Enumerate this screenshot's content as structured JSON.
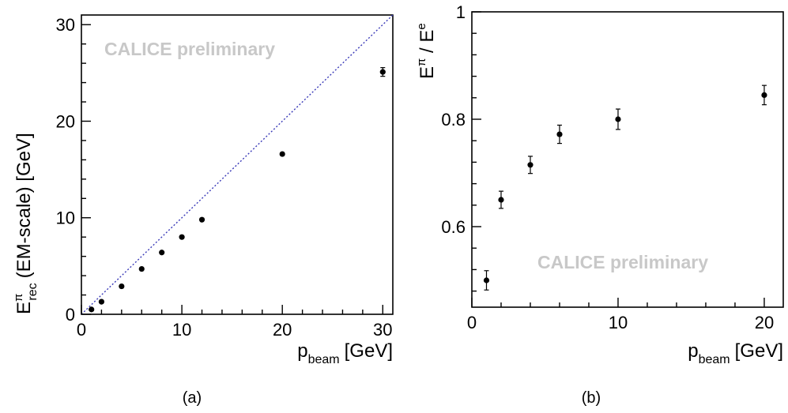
{
  "chart_data": [
    {
      "type": "scatter",
      "panel": "(a)",
      "title": "",
      "xlabel": {
        "main": "p",
        "sub": "beam",
        "unit": "[GeV]"
      },
      "ylabel": {
        "main": "E",
        "sup": "π",
        "sub": "rec",
        "unit": "(EM-scale) [GeV]"
      },
      "xlim": [
        0,
        31
      ],
      "ylim": [
        0,
        31
      ],
      "xticks": [
        0,
        10,
        20,
        30
      ],
      "yticks": [
        0,
        10,
        20,
        30
      ],
      "watermark": "CALICE preliminary",
      "reference_line": {
        "x": [
          0,
          31
        ],
        "y": [
          0,
          31
        ],
        "style": "dotted",
        "color": "#3a3ab8"
      },
      "grid": false,
      "series": [
        {
          "marker_color": "#000000",
          "x": [
            1,
            2,
            4,
            6,
            8,
            10,
            12,
            20,
            30
          ],
          "y": [
            0.5,
            1.3,
            2.9,
            4.7,
            6.4,
            8.0,
            9.8,
            16.6,
            25.1
          ],
          "yerr": [
            0,
            0,
            0,
            0,
            0,
            0,
            0,
            0,
            0.45
          ]
        }
      ]
    },
    {
      "type": "scatter",
      "panel": "(b)",
      "title": "",
      "xlabel": {
        "main": "p",
        "sub": "beam",
        "unit": "[GeV]"
      },
      "ylabel": {
        "num": "E",
        "num_sup": "π",
        "sep": " / ",
        "den": "E",
        "den_sup": "e"
      },
      "xlim": [
        0,
        21.3
      ],
      "ylim": [
        0.45,
        1.0
      ],
      "xticks": [
        0,
        10,
        20
      ],
      "yticks": [
        0.6,
        0.8,
        1
      ],
      "ytick_labels": [
        "0.6",
        "0.8",
        "1"
      ],
      "watermark": "CALICE preliminary",
      "grid": false,
      "series": [
        {
          "marker_color": "#000000",
          "x": [
            1,
            2,
            4,
            6,
            10,
            20
          ],
          "y": [
            0.5,
            0.65,
            0.715,
            0.772,
            0.8,
            0.845
          ],
          "yerr": [
            0.018,
            0.016,
            0.016,
            0.017,
            0.019,
            0.018
          ]
        }
      ]
    }
  ],
  "captions": [
    "(a)",
    "(b)"
  ]
}
